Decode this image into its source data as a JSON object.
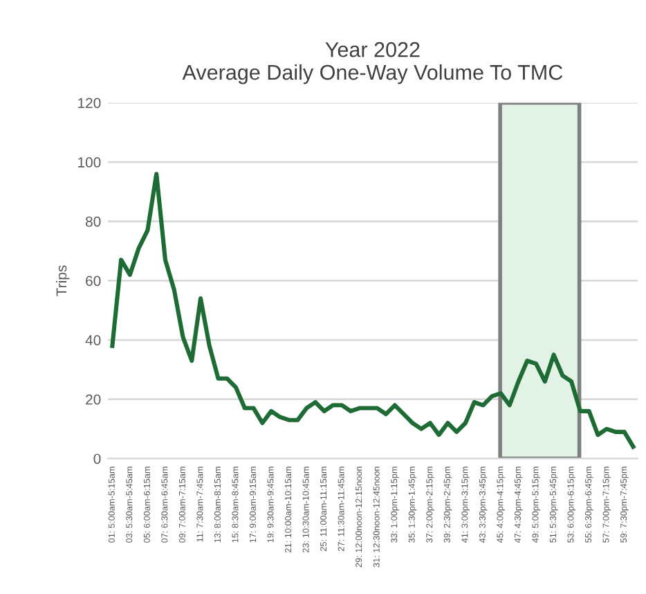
{
  "chart_data": {
    "type": "line",
    "title": "Year 2022\nAverage Daily One-Way Volume To TMC",
    "ylabel": "Trips",
    "categories": [
      "01: 5:00am-5:15am",
      null,
      "03: 5:30am-5:45am",
      null,
      "05: 6:00am-6:15am",
      null,
      "07: 6:30am-6:45am",
      null,
      "09: 7:00am-7:15am",
      null,
      "11: 7:30am-7:45am",
      null,
      "13: 8:00am-8:15am",
      null,
      "15: 8:30am-8:45am",
      null,
      "17: 9:00am-9:15am",
      null,
      "19: 9:30am-9:45am",
      null,
      "21: 10:00am-10:15am",
      null,
      "23: 10:30am-10:45am",
      null,
      "25: 11:00am-11:15am",
      null,
      "27: 11:30am-11:45am",
      null,
      "29: 12:00noon-12:15noon",
      null,
      "31: 12:30noon-12:45noon",
      null,
      "33: 1:00pm-1:15pm",
      null,
      "35: 1:30pm-1:45pm",
      null,
      "37: 2:00pm-2:15pm",
      null,
      "39: 2:30pm-2:45pm",
      null,
      "41: 3:00pm-3:15pm",
      null,
      "43: 3:30pm-3:45pm",
      null,
      "45: 4:00pm-4:15pm",
      null,
      "47: 4:30pm-4:45pm",
      null,
      "49: 5:00pm-5:15pm",
      null,
      "51: 5:30pm-5:45pm",
      null,
      "53: 6:00pm-6:15pm",
      null,
      "55: 6:30pm-6:45pm",
      null,
      "57: 7:00pm-7:15pm",
      null,
      "59: 7:30pm-7:45pm",
      null
    ],
    "series": [
      {
        "color": "#1e6b35",
        "values": [
          38,
          67,
          62,
          71,
          77,
          96,
          67,
          57,
          41,
          33,
          54,
          38,
          27,
          27,
          24,
          17,
          17,
          12,
          16,
          14,
          13,
          13,
          17,
          19,
          16,
          18,
          18,
          16,
          17,
          17,
          17,
          15,
          18,
          15,
          12,
          10,
          12,
          8,
          12,
          9,
          12,
          19,
          18,
          21,
          22,
          18,
          26,
          33,
          32,
          26,
          35,
          28,
          26,
          16,
          16,
          8,
          10,
          9,
          9,
          4
        ]
      }
    ],
    "ylim": [
      0,
      120
    ],
    "yticks": [
      0,
      20,
      40,
      60,
      80,
      100,
      120
    ],
    "grid": "y",
    "marker": "none",
    "line_style": "solid"
  }
}
